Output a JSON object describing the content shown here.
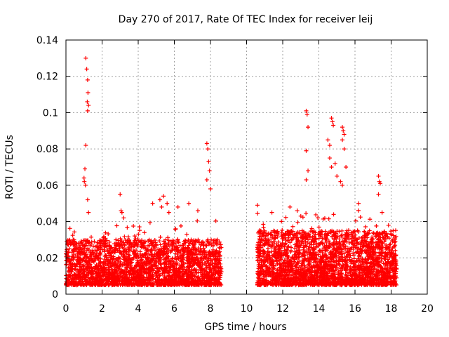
{
  "chart_data": {
    "type": "scatter",
    "title": "Day 270 of 2017, Rate Of TEC Index for receiver leij",
    "xlabel": "GPS time / hours",
    "ylabel": "ROTI / TECUs",
    "xlim": [
      0,
      20
    ],
    "ylim": [
      0,
      0.14
    ],
    "xticks": [
      0,
      2,
      4,
      6,
      8,
      10,
      12,
      14,
      16,
      18,
      20
    ],
    "yticks": [
      0,
      0.02,
      0.04,
      0.06,
      0.08,
      0.1,
      0.12,
      0.14
    ],
    "xtick_labels": [
      "0",
      "2",
      "4",
      "6",
      "8",
      "10",
      "12",
      "14",
      "16",
      "18",
      "20"
    ],
    "ytick_labels": [
      "0",
      "0.02",
      "0.04",
      "0.06",
      "0.08",
      "0.1",
      "0.12",
      "0.14"
    ],
    "grid": true,
    "marker": "+",
    "marker_color": "#ff0000",
    "series": [
      {
        "name": "ROTI",
        "note": "dense scatter; representative outliers listed, bulk generated from ranges",
        "x": [
          1.1,
          1.15,
          1.2,
          1.22,
          1.18,
          1.25,
          1.2,
          1.1,
          1.05,
          1.0,
          1.02,
          1.08,
          1.2,
          1.25,
          3.0,
          3.05,
          3.1,
          3.2,
          4.8,
          5.2,
          5.3,
          5.4,
          5.6,
          5.7,
          6.2,
          6.8,
          7.3,
          7.8,
          7.85,
          7.9,
          7.95,
          7.8,
          8.0,
          10.6,
          11.4,
          12.4,
          12.8,
          13.0,
          13.3,
          13.35,
          13.4,
          13.3,
          13.4,
          13.3,
          14.5,
          14.6,
          14.7,
          14.75,
          14.8,
          14.6,
          14.7,
          14.9,
          15.0,
          15.2,
          15.3,
          15.35,
          15.4,
          15.3,
          15.4,
          15.5,
          15.3,
          16.2,
          17.3,
          17.35,
          17.4,
          17.3,
          17.5,
          18.1
        ],
        "y": [
          0.13,
          0.124,
          0.118,
          0.111,
          0.106,
          0.104,
          0.101,
          0.082,
          0.069,
          0.064,
          0.062,
          0.06,
          0.052,
          0.045,
          0.055,
          0.046,
          0.045,
          0.042,
          0.05,
          0.052,
          0.048,
          0.054,
          0.05,
          0.045,
          0.048,
          0.05,
          0.046,
          0.083,
          0.08,
          0.073,
          0.068,
          0.063,
          0.058,
          0.049,
          0.045,
          0.048,
          0.046,
          0.043,
          0.101,
          0.099,
          0.092,
          0.079,
          0.068,
          0.063,
          0.085,
          0.082,
          0.097,
          0.095,
          0.093,
          0.075,
          0.07,
          0.072,
          0.065,
          0.062,
          0.092,
          0.09,
          0.088,
          0.085,
          0.08,
          0.07,
          0.06,
          0.05,
          0.065,
          0.062,
          0.061,
          0.055,
          0.045,
          0.03
        ],
        "segments": [
          {
            "x_start": 0.0,
            "x_end": 8.6,
            "baseline_low": 0.005,
            "baseline_high": 0.03
          },
          {
            "x_start": 10.6,
            "x_end": 18.3,
            "baseline_low": 0.005,
            "baseline_high": 0.035
          }
        ]
      }
    ]
  }
}
